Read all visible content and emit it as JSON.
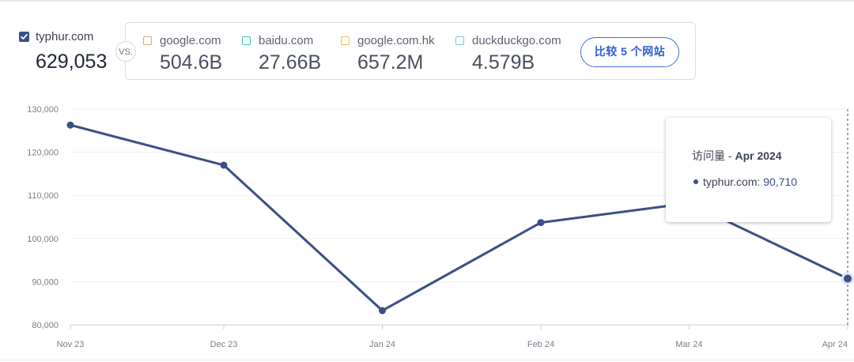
{
  "primary_site": {
    "name": "typhur.com",
    "visits": "629,053",
    "checked": true,
    "color": "#3b4f86"
  },
  "vs_label": "VS.",
  "competitors": [
    {
      "name": "google.com",
      "value": "504.6B",
      "color": "#f0a060"
    },
    {
      "name": "baidu.com",
      "value": "27.66B",
      "color": "#3cc9b0"
    },
    {
      "name": "google.com.hk",
      "value": "657.2M",
      "color": "#f2c04a"
    },
    {
      "name": "duckduckgo.com",
      "value": "4.579B",
      "color": "#5fd3d8"
    }
  ],
  "compare_button": {
    "label": "比较 5 个网站",
    "color": "#2f5fcf"
  },
  "chart_data": {
    "type": "line",
    "x": [
      "Nov 23",
      "Dec 23",
      "Jan 24",
      "Feb 24",
      "Mar 24",
      "Apr 24"
    ],
    "series": [
      {
        "name": "typhur.com",
        "values": [
          126300,
          117000,
          83300,
          103700,
          108200,
          90710
        ],
        "color": "#3b4f86"
      }
    ],
    "ylim": [
      80000,
      130000
    ],
    "yticks": [
      "80,000",
      "90,000",
      "100,000",
      "110,000",
      "120,000",
      "130,000"
    ],
    "ytick_values": [
      80000,
      90000,
      100000,
      110000,
      120000,
      130000
    ],
    "grid": true,
    "legend": "none",
    "highlight_index": 5
  },
  "tooltip": {
    "title_prefix": "访问量 - ",
    "title_period": "Apr 2024",
    "site": "typhur.com",
    "value": "90,710"
  }
}
